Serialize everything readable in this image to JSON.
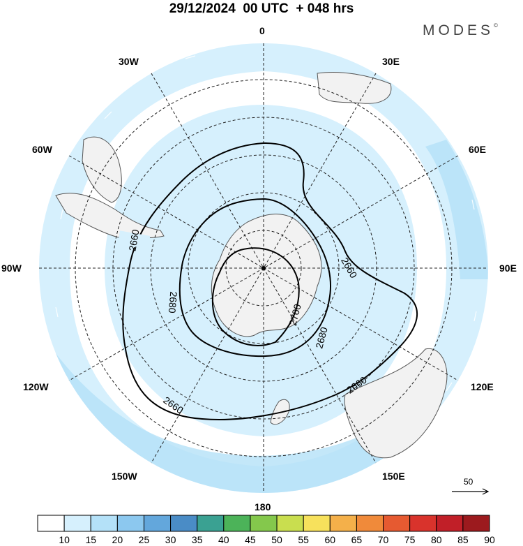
{
  "title": "29/12/2024  00 UTC  + 048 hrs",
  "brand": "MODES",
  "brand_mark": "©",
  "map": {
    "projection": "south polar stereographic",
    "longitude_labels": {
      "top": "0",
      "top_left": "30W",
      "top_right": "30E",
      "upper_left": "60W",
      "upper_right": "60E",
      "left": "90W",
      "right": "90E",
      "lower_left": "120W",
      "lower_right": "120E",
      "bottom_left": "150W",
      "bottom_right": "150E",
      "bottom": "180"
    },
    "contour_labels": [
      "2660",
      "2660",
      "2660",
      "2660",
      "2680",
      "2680",
      "2700"
    ],
    "contour_levels": [
      2660,
      2680,
      2700
    ],
    "wind_vector_scale": "50"
  },
  "colorbar": {
    "labels": [
      "10",
      "15",
      "20",
      "25",
      "30",
      "35",
      "40",
      "45",
      "50",
      "55",
      "60",
      "65",
      "70",
      "75",
      "80",
      "85",
      "90"
    ],
    "colors": [
      "#ffffff",
      "#d6f0fd",
      "#b4e1f8",
      "#8cc8ef",
      "#63a7dc",
      "#4a8cc6",
      "#3aa192",
      "#4cb359",
      "#84c84c",
      "#c9de4f",
      "#f7e15c",
      "#f4b04a",
      "#f08a3a",
      "#e65a31",
      "#d9332c",
      "#c11f28",
      "#9c1a1e"
    ]
  }
}
